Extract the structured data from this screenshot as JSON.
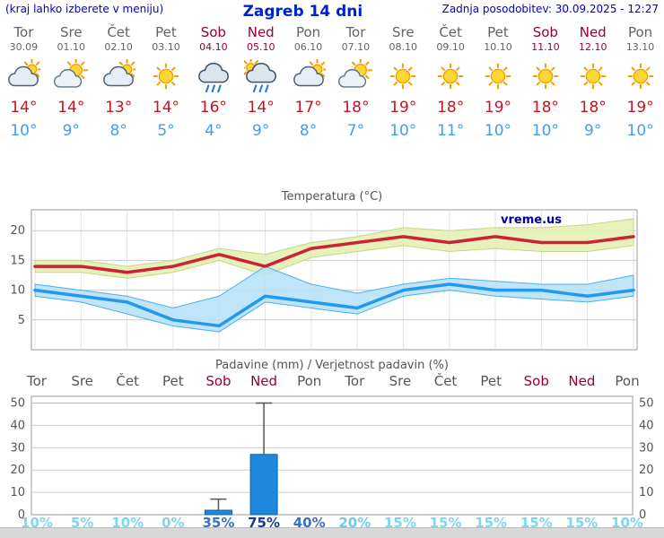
{
  "header": {
    "hint": "(kraj lahko izberete v meniju)",
    "title": "Zagreb 14 dni",
    "updated": "Zadnja posodobitev: 30.09.2025 - 12:27"
  },
  "colors": {
    "accent_blue": "#0022cc",
    "temp_high": "#cc1122",
    "temp_low": "#3f9fee",
    "weekend": "#990033",
    "weekday": "#5f6468",
    "bar_blue": "#1e88dd",
    "footer_gray": "#d8d8d8"
  },
  "days": [
    {
      "name": "Tor",
      "date": "30.09",
      "icon": "mostly-cloudy",
      "high": "14°",
      "low": "10°",
      "weekend": false
    },
    {
      "name": "Sre",
      "date": "01.10",
      "icon": "partly-cloudy",
      "high": "14°",
      "low": "9°",
      "weekend": false
    },
    {
      "name": "Čet",
      "date": "02.10",
      "icon": "mostly-cloudy",
      "high": "13°",
      "low": "8°",
      "weekend": false
    },
    {
      "name": "Pet",
      "date": "03.10",
      "icon": "sunny",
      "high": "14°",
      "low": "5°",
      "weekend": false
    },
    {
      "name": "Sob",
      "date": "04.10",
      "icon": "rain",
      "high": "16°",
      "low": "4°",
      "weekend": true
    },
    {
      "name": "Ned",
      "date": "05.10",
      "icon": "rain-sun",
      "high": "14°",
      "low": "9°",
      "weekend": true
    },
    {
      "name": "Pon",
      "date": "06.10",
      "icon": "mostly-cloudy",
      "high": "17°",
      "low": "8°",
      "weekend": false
    },
    {
      "name": "Tor",
      "date": "07.10",
      "icon": "partly-cloudy",
      "high": "18°",
      "low": "7°",
      "weekend": false
    },
    {
      "name": "Sre",
      "date": "08.10",
      "icon": "sunny",
      "high": "19°",
      "low": "10°",
      "weekend": false
    },
    {
      "name": "Čet",
      "date": "09.10",
      "icon": "sunny",
      "high": "18°",
      "low": "11°",
      "weekend": false
    },
    {
      "name": "Pet",
      "date": "10.10",
      "icon": "sunny",
      "high": "19°",
      "low": "10°",
      "weekend": false
    },
    {
      "name": "Sob",
      "date": "11.10",
      "icon": "sunny",
      "high": "18°",
      "low": "10°",
      "weekend": true
    },
    {
      "name": "Ned",
      "date": "12.10",
      "icon": "sunny",
      "high": "18°",
      "low": "9°",
      "weekend": true
    },
    {
      "name": "Pon",
      "date": "13.10",
      "icon": "sunny",
      "high": "19°",
      "low": "10°",
      "weekend": false
    }
  ],
  "chart_data": [
    {
      "type": "line",
      "title": "Temperatura (°C)",
      "categories": [
        "Tor",
        "Sre",
        "Čet",
        "Pet",
        "Sob",
        "Ned",
        "Pon",
        "Tor",
        "Sre",
        "Čet",
        "Pet",
        "Sob",
        "Ned",
        "Pon"
      ],
      "series": [
        {
          "name": "max-temperature",
          "color": "#cc2233",
          "values": [
            14,
            14,
            13,
            14,
            16,
            14,
            17,
            18,
            19,
            18,
            19,
            18,
            18,
            19
          ]
        },
        {
          "name": "min-temperature",
          "color": "#2299ee",
          "values": [
            10,
            9,
            8,
            5,
            4,
            9,
            8,
            7,
            10,
            11,
            10,
            10,
            9,
            10
          ]
        }
      ],
      "bands": [
        {
          "name": "max-range",
          "fill": "#e3eeb0",
          "edge": "#c2d884",
          "upper": [
            15,
            15,
            14,
            15,
            17,
            16,
            18,
            19,
            20.5,
            20,
            20.5,
            20.5,
            21,
            22
          ],
          "lower": [
            13,
            13,
            12,
            13,
            15,
            12.5,
            15.5,
            16.5,
            17.5,
            16.5,
            17,
            16.5,
            16.5,
            17.5
          ]
        },
        {
          "name": "min-range",
          "fill": "#b5e0f8",
          "edge": "#49b0ec",
          "upper": [
            11,
            10,
            9,
            7,
            9,
            14,
            11,
            9.5,
            11,
            12,
            11.5,
            11,
            11,
            12.5
          ],
          "lower": [
            9,
            8,
            6,
            4,
            3,
            8,
            7,
            6,
            9,
            10,
            9,
            8.5,
            8,
            9
          ]
        }
      ],
      "yticks": [
        5,
        10,
        15,
        20
      ],
      "ylim": [
        0,
        23.5
      ],
      "grid": true,
      "legend": "none",
      "watermark": "vreme.us"
    },
    {
      "type": "bar",
      "title": "Padavine (mm) / Verjetnost padavin (%)",
      "categories": [
        "Tor",
        "Sre",
        "Čet",
        "Pet",
        "Sob",
        "Ned",
        "Pon",
        "Tor",
        "Sre",
        "Čet",
        "Pet",
        "Sob",
        "Ned",
        "Pon"
      ],
      "weekend": [
        false,
        false,
        false,
        false,
        true,
        true,
        false,
        false,
        false,
        false,
        false,
        true,
        true,
        false
      ],
      "values_mm": [
        0,
        0,
        0,
        0,
        2,
        27,
        0,
        0,
        0,
        0,
        0,
        0,
        0,
        0
      ],
      "whisker_mm": [
        0,
        0,
        0,
        0,
        7,
        50,
        0,
        0,
        0,
        0,
        0,
        0,
        0,
        0
      ],
      "probabilities": [
        "10%",
        "5%",
        "10%",
        "0%",
        "35%",
        "75%",
        "40%",
        "20%",
        "15%",
        "15%",
        "15%",
        "15%",
        "15%",
        "10%"
      ],
      "prob_colors": [
        "#7fd6ef",
        "#7fd6ef",
        "#7fd6ef",
        "#7fd6ef",
        "#3a72c0",
        "#1b3a8f",
        "#3a72c0",
        "#6fc9ec",
        "#7fd6ef",
        "#7fd6ef",
        "#7fd6ef",
        "#7fd6ef",
        "#7fd6ef",
        "#7fd6ef"
      ],
      "yticks": [
        0,
        10,
        20,
        30,
        40,
        50
      ],
      "ylim": [
        0,
        53
      ],
      "grid": true,
      "legend": "none"
    }
  ]
}
